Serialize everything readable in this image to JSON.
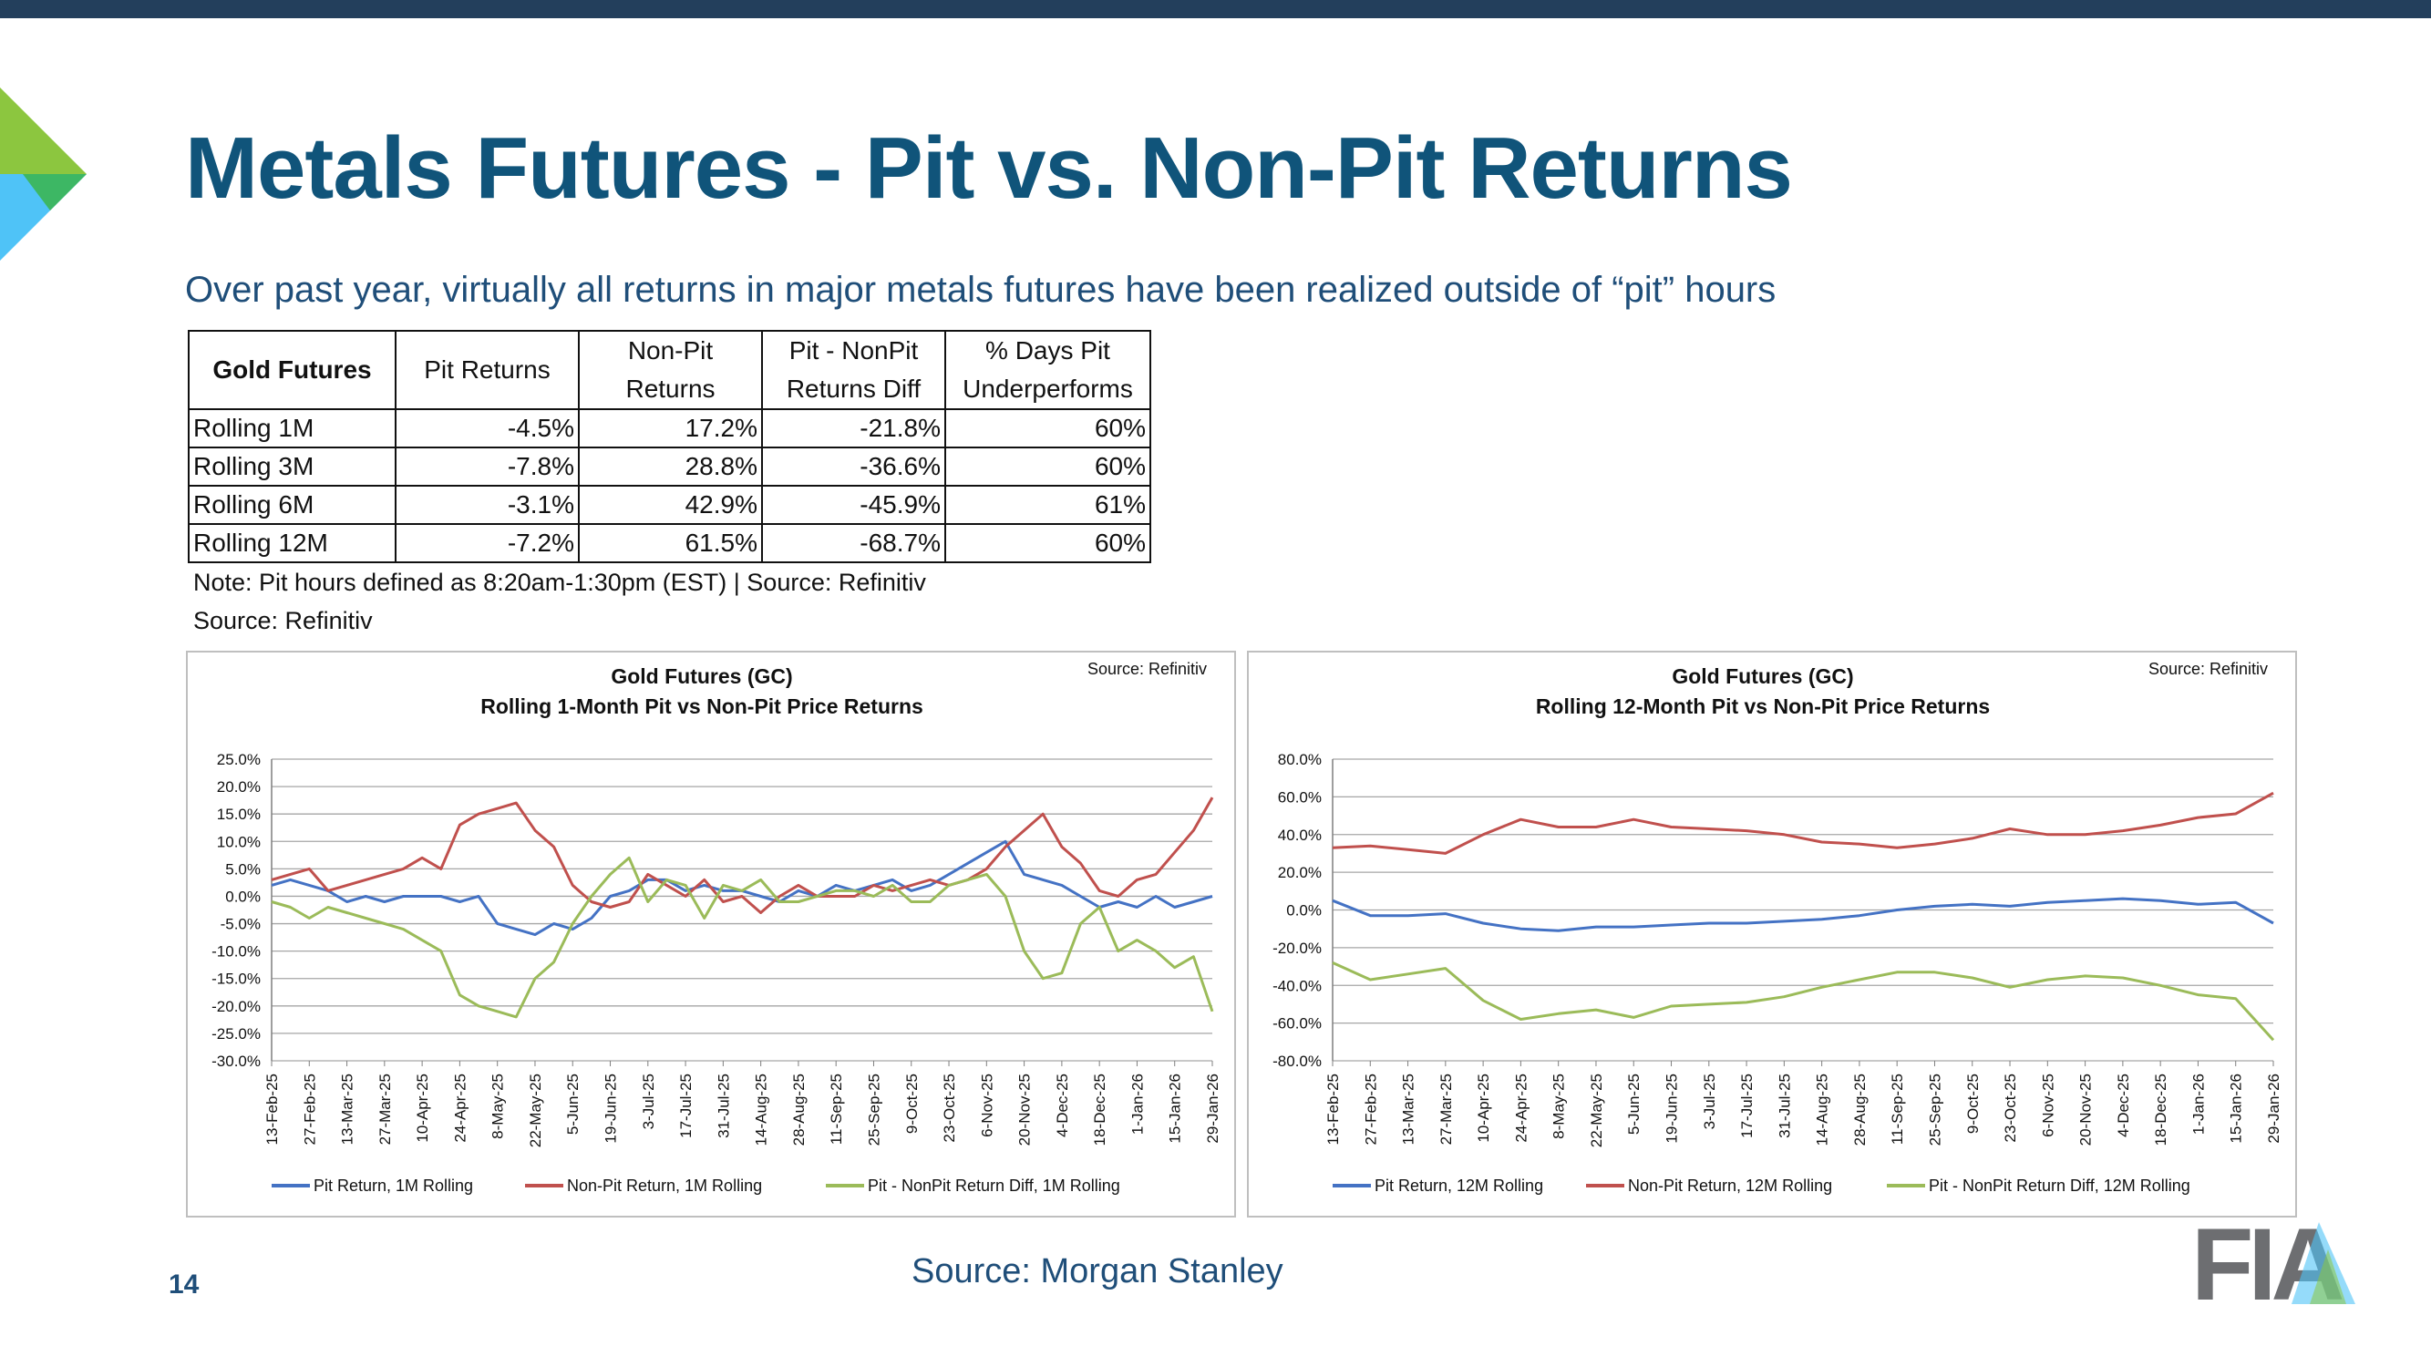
{
  "page": {
    "title": "Metals Futures - Pit vs. Non-Pit Returns",
    "subtitle": "Over past year, virtually all returns in major metals futures have been realized outside of “pit” hours",
    "page_number": "14",
    "footer_source": "Source: Morgan Stanley",
    "brand": "FIA"
  },
  "table": {
    "headers": [
      "Gold Futures",
      "Pit Returns",
      "Non-Pit Returns",
      "Pit - NonPit Returns Diff",
      "% Days Pit Underperforms"
    ],
    "header_lines": [
      [
        "Gold Futures"
      ],
      [
        "Pit Returns"
      ],
      [
        "Non-Pit",
        "Returns"
      ],
      [
        "Pit - NonPit",
        "Returns Diff"
      ],
      [
        "% Days Pit",
        "Underperforms"
      ]
    ],
    "rows": [
      [
        "Rolling 1M",
        "-4.5%",
        "17.2%",
        "-21.8%",
        "60%"
      ],
      [
        "Rolling 3M",
        "-7.8%",
        "28.8%",
        "-36.6%",
        "60%"
      ],
      [
        "Rolling 6M",
        "-3.1%",
        "42.9%",
        "-45.9%",
        "61%"
      ],
      [
        "Rolling 12M",
        "-7.2%",
        "61.5%",
        "-68.7%",
        "60%"
      ]
    ],
    "note": "Note: Pit hours defined as 8:20am-1:30pm (EST) | Source: Refinitiv",
    "source": "Source: Refinitiv"
  },
  "colors": {
    "pit": "#4472c4",
    "nonpit": "#c0504d",
    "diff": "#9bbb59",
    "title": "#10547a",
    "topbar": "#233f5c"
  },
  "chart_data": [
    {
      "type": "line",
      "title": "Gold Futures (GC)",
      "subtitle": "Rolling 1-Month Pit vs Non-Pit Price Returns",
      "source_note": "Source: Refinitiv",
      "xlabel": "",
      "ylabel": "",
      "ylim": [
        -30,
        25
      ],
      "yticks": [
        25,
        20,
        15,
        10,
        5,
        0,
        -5,
        -10,
        -15,
        -20,
        -25,
        -30
      ],
      "y_format": "pct1",
      "grid": true,
      "legend": "bottom",
      "x_tick_labels": [
        "13-Feb-25",
        "27-Feb-25",
        "13-Mar-25",
        "27-Mar-25",
        "10-Apr-25",
        "24-Apr-25",
        "8-May-25",
        "22-May-25",
        "5-Jun-25",
        "19-Jun-25",
        "3-Jul-25",
        "17-Jul-25",
        "31-Jul-25",
        "14-Aug-25",
        "28-Aug-25",
        "11-Sep-25",
        "25-Sep-25",
        "9-Oct-25",
        "23-Oct-25",
        "6-Nov-25",
        "20-Nov-25",
        "4-Dec-25",
        "18-Dec-25",
        "1-Jan-26",
        "15-Jan-26",
        "29-Jan-26"
      ],
      "x": [
        0,
        0.5,
        1,
        1.5,
        2,
        2.5,
        3,
        3.5,
        4,
        4.5,
        5,
        5.5,
        6,
        6.5,
        7,
        7.5,
        8,
        8.5,
        9,
        9.5,
        10,
        10.5,
        11,
        11.5,
        12,
        12.5,
        13,
        13.5,
        14,
        14.5,
        15,
        15.5,
        16,
        16.5,
        17,
        17.5,
        18,
        18.5,
        19,
        19.5,
        20,
        20.5,
        21,
        21.5,
        22,
        22.5,
        23,
        23.5,
        24,
        24.5,
        25
      ],
      "series": [
        {
          "name": "Pit Return, 1M Rolling",
          "color": "#4472c4",
          "values": [
            2,
            3,
            2,
            1,
            -1,
            0,
            -1,
            0,
            0,
            0,
            -1,
            0,
            -5,
            -6,
            -7,
            -5,
            -6,
            -4,
            0,
            1,
            3,
            3,
            1,
            2,
            1,
            1,
            0,
            -1,
            1,
            0,
            2,
            1,
            2,
            3,
            1,
            2,
            4,
            6,
            8,
            10,
            4,
            3,
            2,
            0,
            -2,
            -1,
            -2,
            0,
            -2,
            -1,
            0
          ]
        },
        {
          "name": "Non-Pit Return, 1M Rolling",
          "color": "#c0504d",
          "values": [
            3,
            4,
            5,
            1,
            2,
            3,
            4,
            5,
            7,
            5,
            13,
            15,
            16,
            17,
            12,
            9,
            2,
            -1,
            -2,
            -1,
            4,
            2,
            0,
            3,
            -1,
            0,
            -3,
            0,
            2,
            0,
            0,
            0,
            2,
            1,
            2,
            3,
            2,
            3,
            5,
            9,
            12,
            15,
            9,
            6,
            1,
            0,
            3,
            4,
            8,
            12,
            18
          ]
        },
        {
          "name": "Pit - NonPit Return Diff, 1M Rolling",
          "color": "#9bbb59",
          "values": [
            -1,
            -2,
            -4,
            -2,
            -3,
            -4,
            -5,
            -6,
            -8,
            -10,
            -18,
            -20,
            -21,
            -22,
            -15,
            -12,
            -5,
            0,
            4,
            7,
            -1,
            3,
            2,
            -4,
            2,
            1,
            3,
            -1,
            -1,
            0,
            1,
            1,
            0,
            2,
            -1,
            -1,
            2,
            3,
            4,
            0,
            -10,
            -15,
            -14,
            -5,
            -2,
            -10,
            -8,
            -10,
            -13,
            -11,
            -21
          ]
        }
      ]
    },
    {
      "type": "line",
      "title": "Gold Futures (GC)",
      "subtitle": "Rolling 12-Month Pit vs Non-Pit Price Returns",
      "source_note": "Source: Refinitiv",
      "xlabel": "",
      "ylabel": "",
      "ylim": [
        -80,
        80
      ],
      "yticks": [
        80,
        60,
        40,
        20,
        0,
        -20,
        -40,
        -60,
        -80
      ],
      "y_format": "pct1",
      "grid": true,
      "legend": "bottom",
      "x_tick_labels": [
        "13-Feb-25",
        "27-Feb-25",
        "13-Mar-25",
        "27-Mar-25",
        "10-Apr-25",
        "24-Apr-25",
        "8-May-25",
        "22-May-25",
        "5-Jun-25",
        "19-Jun-25",
        "3-Jul-25",
        "17-Jul-25",
        "31-Jul-25",
        "14-Aug-25",
        "28-Aug-25",
        "11-Sep-25",
        "25-Sep-25",
        "9-Oct-25",
        "23-Oct-25",
        "6-Nov-25",
        "20-Nov-25",
        "4-Dec-25",
        "18-Dec-25",
        "1-Jan-26",
        "15-Jan-26",
        "29-Jan-26"
      ],
      "x": [
        0,
        1,
        2,
        3,
        4,
        5,
        6,
        7,
        8,
        9,
        10,
        11,
        12,
        13,
        14,
        15,
        16,
        17,
        18,
        19,
        20,
        21,
        22,
        23,
        24,
        25
      ],
      "series": [
        {
          "name": "Pit Return, 12M Rolling",
          "color": "#4472c4",
          "values": [
            5,
            -3,
            -3,
            -2,
            -7,
            -10,
            -11,
            -9,
            -9,
            -8,
            -7,
            -7,
            -6,
            -5,
            -3,
            0,
            2,
            3,
            2,
            4,
            5,
            6,
            5,
            3,
            4,
            -7
          ]
        },
        {
          "name": "Non-Pit Return, 12M Rolling",
          "color": "#c0504d",
          "values": [
            33,
            34,
            32,
            30,
            40,
            48,
            44,
            44,
            48,
            44,
            43,
            42,
            40,
            36,
            35,
            33,
            35,
            38,
            43,
            40,
            40,
            42,
            45,
            49,
            51,
            62
          ]
        },
        {
          "name": "Pit - NonPit Return Diff, 12M Rolling",
          "color": "#9bbb59",
          "values": [
            -28,
            -37,
            -34,
            -31,
            -48,
            -58,
            -55,
            -53,
            -57,
            -51,
            -50,
            -49,
            -46,
            -41,
            -37,
            -33,
            -33,
            -36,
            -41,
            -37,
            -35,
            -36,
            -40,
            -45,
            -47,
            -69
          ]
        }
      ]
    }
  ]
}
